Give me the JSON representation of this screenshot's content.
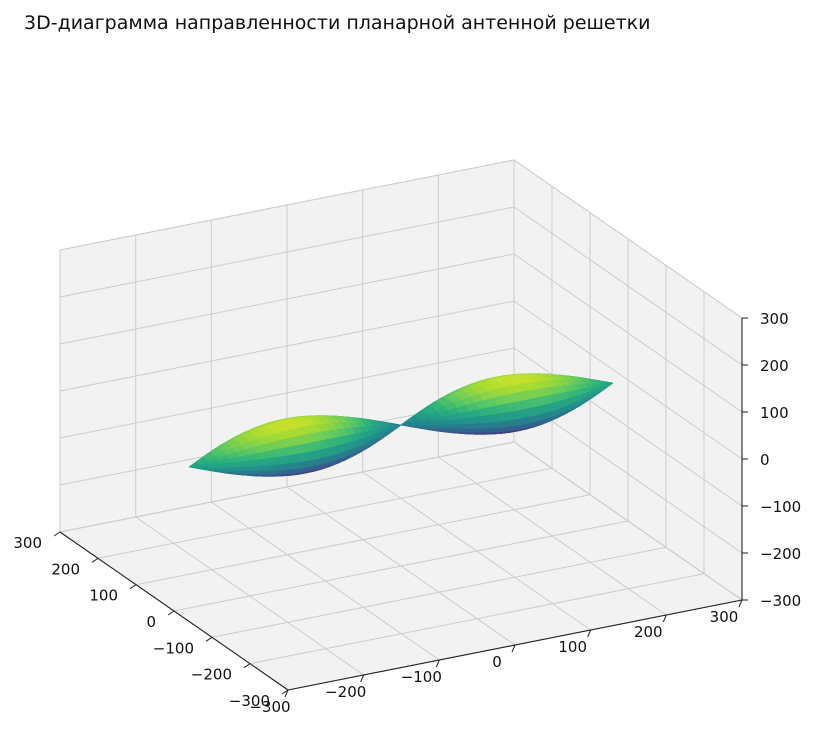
{
  "chart_data": {
    "type": "surface3d",
    "title": "3D-диаграмма направленности планарной антенной решетки",
    "colormap": "viridis",
    "pane_color": "#f2f2f2",
    "grid": true,
    "xlim": [
      -300,
      300
    ],
    "ylim": [
      -300,
      300
    ],
    "zlim": [
      -300,
      300
    ],
    "x_ticks": [
      -300,
      -200,
      -100,
      0,
      100,
      200,
      300
    ],
    "y_ticks": [
      -300,
      -200,
      -100,
      0,
      100,
      200,
      300
    ],
    "z_ticks": [
      -300,
      -200,
      -100,
      0,
      100,
      200,
      300
    ],
    "x_tick_labels": [
      "−300",
      "−200",
      "−100",
      "0",
      "100",
      "200",
      "300"
    ],
    "y_tick_labels": [
      "−300",
      "−200",
      "−100",
      "0",
      "100",
      "200",
      "300"
    ],
    "z_tick_labels": [
      "−300",
      "−200",
      "−100",
      "0",
      "100",
      "200",
      "300"
    ],
    "surface": {
      "shape": "two-lobe pattern",
      "lobe_axis": "x",
      "max_radius": 280,
      "lobe_width_ratio": 0.18
    }
  }
}
